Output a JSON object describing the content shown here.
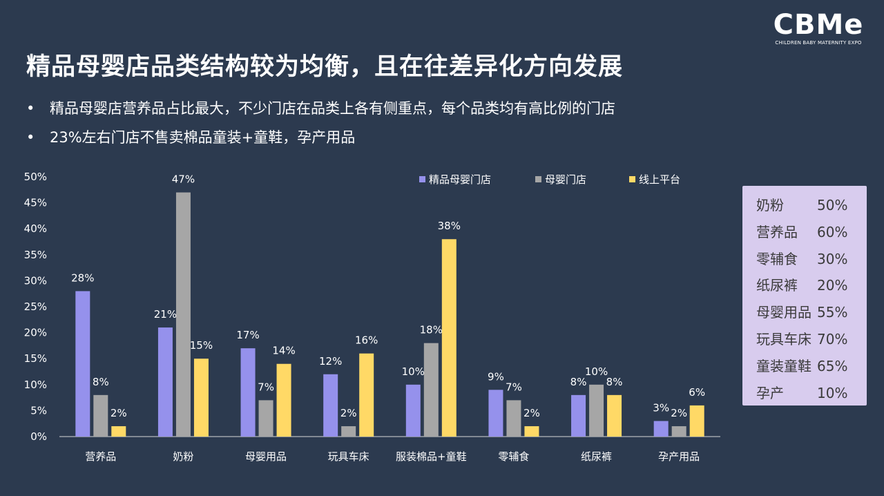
{
  "logo": {
    "mark": "CBMe",
    "subtitle": "CHILDREN BABY MATERNITY EXPO"
  },
  "title": "精品母婴店品类结构较为均衡，且在往差异化方向发展",
  "bullets": [
    "精品母婴店营养品占比最大，不少门店在品类上各有侧重点，每个品类均有高比例的门店",
    "23%左右门店不售卖棉品童装+童鞋，孕产用品"
  ],
  "bullet_marker": "•",
  "chart_data": {
    "type": "bar",
    "categories": [
      "营养品",
      "奶粉",
      "母婴用品",
      "玩具车床",
      "服装棉品+童鞋",
      "零辅食",
      "纸尿裤",
      "孕产用品"
    ],
    "series": [
      {
        "name": "精品母婴门店",
        "color": "#9591ec",
        "values": [
          28,
          21,
          17,
          12,
          10,
          9,
          8,
          3
        ]
      },
      {
        "name": "母婴门店",
        "color": "#a6a6a6",
        "values": [
          8,
          47,
          7,
          2,
          18,
          7,
          10,
          2
        ]
      },
      {
        "name": "线上平台",
        "color": "#ffd966",
        "values": [
          2,
          15,
          14,
          16,
          38,
          2,
          8,
          6
        ]
      }
    ],
    "value_suffix": "%",
    "ylim": [
      0,
      50
    ],
    "yticks": [
      "0%",
      "5%",
      "10%",
      "15%",
      "20%",
      "25%",
      "30%",
      "35%",
      "40%",
      "45%",
      "50%"
    ],
    "legend_position": "top",
    "grid": false
  },
  "side_panel": {
    "rows": [
      {
        "category": "奶粉",
        "value": "50%"
      },
      {
        "category": "营养品",
        "value": "60%"
      },
      {
        "category": "零辅食",
        "value": "30%"
      },
      {
        "category": "纸尿裤",
        "value": "20%"
      },
      {
        "category": "母婴用品",
        "value": "55%"
      },
      {
        "category": "玩具车床",
        "value": "70%"
      },
      {
        "category": "童装童鞋",
        "value": "65%"
      },
      {
        "category": "孕产",
        "value": "10%"
      }
    ]
  }
}
